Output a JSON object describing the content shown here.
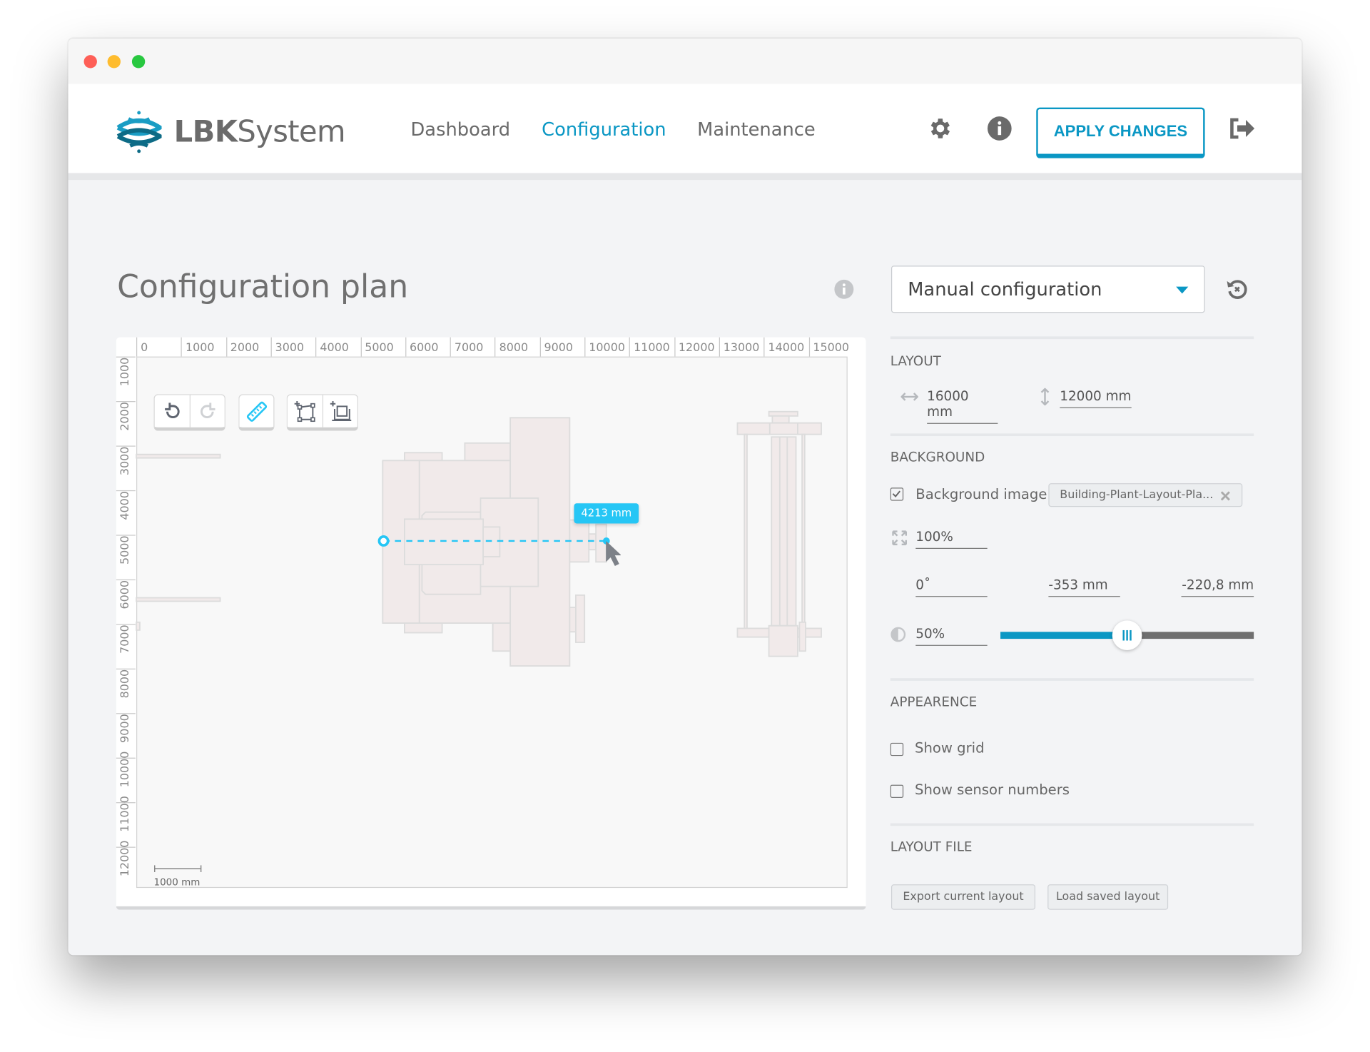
{
  "window": {
    "traffic_lights": {
      "close": "#fe5f57",
      "minimize": "#febc2e",
      "zoom": "#28c840"
    }
  },
  "header": {
    "logo": {
      "bold": "LBK",
      "light": "System"
    },
    "nav": [
      {
        "label": "Dashboard",
        "active": false
      },
      {
        "label": "Configuration",
        "active": true
      },
      {
        "label": "Maintenance",
        "active": false
      }
    ],
    "icons": [
      "gear-icon",
      "info-icon",
      "logout-icon"
    ],
    "apply_label": "APPLY CHANGES"
  },
  "colors": {
    "accent": "#0a97c4",
    "measure": "#26c6f5",
    "shape_fill": "#f1eaea",
    "shape_stroke": "#dcdcdc"
  },
  "main": {
    "title": "Configuration plan",
    "canvas": {
      "ruler_top": [
        "0",
        "1000",
        "2000",
        "3000",
        "4000",
        "5000",
        "6000",
        "7000",
        "8000",
        "9000",
        "10000",
        "11000",
        "12000",
        "13000",
        "14000",
        "15000"
      ],
      "ruler_left": [
        "1000",
        "2000",
        "3000",
        "4000",
        "5000",
        "6000",
        "7000",
        "8000",
        "9000",
        "10000",
        "11000",
        "12000"
      ],
      "measurement": "4213 mm",
      "scale_bar": "1000 mm",
      "tools": [
        "undo-icon",
        "redo-icon",
        "ruler-icon",
        "add-polygon-icon",
        "add-wall-icon"
      ]
    }
  },
  "panel": {
    "mode_select": "Manual configuration",
    "layout": {
      "heading": "LAYOUT",
      "width": "16000 mm",
      "height": "12000 mm"
    },
    "background": {
      "heading": "BACKGROUND",
      "image_label": "Background image",
      "image_checked": true,
      "file": "Building-Plant-Layout-Pla...",
      "scale": "100%",
      "rotation": "0˚",
      "offset_x": "-353 mm",
      "offset_y": "-220,8 mm",
      "opacity": "50%",
      "opacity_value": 50
    },
    "appearance": {
      "heading": "APPEARENCE",
      "show_grid": "Show grid",
      "show_grid_checked": false,
      "show_sensor_numbers": "Show sensor numbers",
      "show_sensor_numbers_checked": false
    },
    "layout_file": {
      "heading": "LAYOUT FILE",
      "export": "Export current layout",
      "load": "Load saved layout"
    }
  }
}
